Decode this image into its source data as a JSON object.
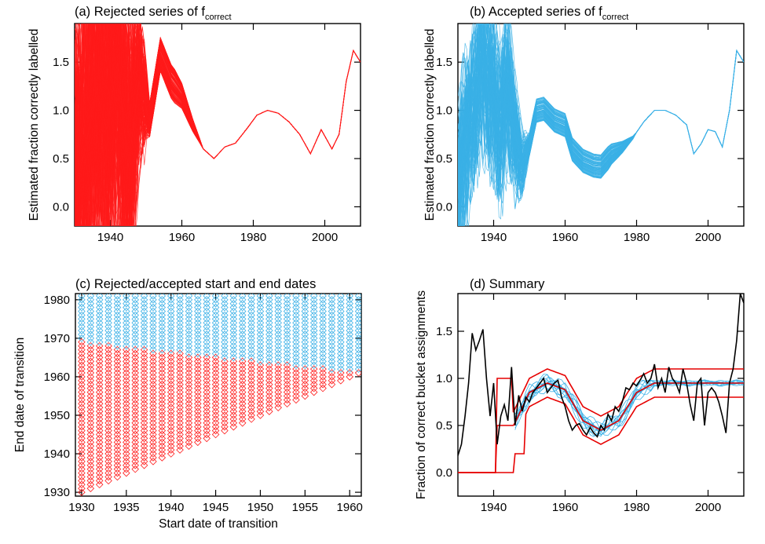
{
  "colors": {
    "rejected": "#ff1a1a",
    "accepted": "#3ab0e6",
    "summary": "#000000",
    "envelope": "#e60000"
  },
  "chart_data": [
    {
      "type": "line",
      "title": "(a) Rejected series of f",
      "title_subscript": "correct",
      "ylabel": "Estimated fraction correctly labelled",
      "xlabel": "",
      "xlim": [
        1930,
        2010
      ],
      "ylim": [
        -0.2,
        1.9
      ],
      "xticks": [
        1940,
        1960,
        1980,
        2000
      ],
      "yticks": [
        0.0,
        0.5,
        1.0,
        1.5
      ],
      "grid": false,
      "series_description": "ensemble of ~300 rejected f_correct curves, wildly unstable before 1950",
      "series": [
        {
          "x": [
            1930,
            1933,
            1936,
            1939,
            1942,
            1945,
            1948,
            1951,
            1954,
            1957,
            1960,
            1963,
            1966,
            1969,
            1972,
            1975,
            1978,
            1981,
            1984,
            1987,
            1990,
            1993,
            1996,
            1999,
            2002,
            2004,
            2006,
            2008,
            2010
          ],
          "values": [
            0.2,
            0.6,
            1.2,
            0.8,
            1.5,
            0.4,
            1.3,
            0.9,
            1.58,
            1.3,
            1.15,
            0.85,
            0.6,
            0.5,
            0.62,
            0.66,
            0.8,
            0.95,
            1.0,
            0.97,
            0.88,
            0.75,
            0.55,
            0.8,
            0.6,
            0.75,
            1.3,
            1.62,
            1.5
          ]
        }
      ]
    },
    {
      "type": "line",
      "title": "(b) Accepted series of f",
      "title_subscript": "correct",
      "ylabel": "Estimated fraction correctly labelled",
      "xlabel": "",
      "xlim": [
        1930,
        2010
      ],
      "ylim": [
        -0.2,
        1.9
      ],
      "xticks": [
        1940,
        1960,
        1980,
        2000
      ],
      "yticks": [
        0.0,
        0.5,
        1.0,
        1.5
      ],
      "grid": false,
      "series": [
        {
          "x": [
            1930,
            1933,
            1936,
            1938,
            1940,
            1942,
            1944,
            1946,
            1948,
            1950,
            1952,
            1954,
            1957,
            1960,
            1962,
            1965,
            1968,
            1970,
            1973,
            1976,
            1979,
            1982,
            1985,
            1988,
            1991,
            1994,
            1996,
            1998,
            2000,
            2002,
            2004,
            2006,
            2008,
            2010
          ],
          "values": [
            0.2,
            0.9,
            1.35,
            1.45,
            1.15,
            0.9,
            1.3,
            0.75,
            0.45,
            0.65,
            1.0,
            1.02,
            0.9,
            0.85,
            0.6,
            0.48,
            0.43,
            0.42,
            0.55,
            0.62,
            0.72,
            0.88,
            1.0,
            1.0,
            0.95,
            0.85,
            0.55,
            0.65,
            0.8,
            0.78,
            0.62,
            1.0,
            1.62,
            1.5
          ]
        }
      ]
    },
    {
      "type": "scatter",
      "title": "(c) Rejected/accepted start and end dates",
      "xlabel": "Start date of transition",
      "ylabel": "End date of transition",
      "xlim": [
        1929.3,
        1961.3
      ],
      "ylim": [
        1929,
        1981.6
      ],
      "xticks": [
        1930,
        1935,
        1940,
        1945,
        1950,
        1955,
        1960
      ],
      "yticks": [
        1930,
        1940,
        1950,
        1960,
        1970,
        1980
      ],
      "marker": "diamond",
      "grid_points": {
        "start_years": [
          1930,
          1961
        ],
        "end_years": [
          1930,
          1981
        ],
        "valid_if": "end >= start"
      },
      "acceptance_boundary": {
        "start": [
          1930,
          1961
        ],
        "end": [
          1969,
          1961
        ]
      },
      "series": [
        {
          "name": "",
          "color": "#3ab0e6",
          "rule": "end above boundary"
        },
        {
          "name": "",
          "color": "#ff1a1a",
          "rule": "end at or below boundary"
        }
      ]
    },
    {
      "type": "line",
      "title": "(d) Summary",
      "ylabel": "Fraction of correct bucket assignments",
      "xlabel": "",
      "xlim": [
        1930,
        2010
      ],
      "ylim": [
        -0.25,
        1.9
      ],
      "xticks": [
        1940,
        1960,
        1980,
        2000
      ],
      "yticks": [
        0.0,
        0.5,
        1.0,
        1.5
      ],
      "grid": false,
      "series": [
        {
          "x": [
            1930,
            1931,
            1932,
            1933,
            1934,
            1935,
            1936,
            1937,
            1938,
            1939,
            1940,
            1941,
            1942,
            1943,
            1944,
            1945,
            1946,
            1947,
            1948,
            1949,
            1950,
            1951,
            1952,
            1953,
            1954,
            1955,
            1956,
            1957,
            1958,
            1959,
            1960,
            1961,
            1962,
            1963,
            1964,
            1965,
            1966,
            1967,
            1968,
            1969,
            1970,
            1971,
            1972,
            1973,
            1974,
            1975,
            1976,
            1977,
            1978,
            1979,
            1980,
            1981,
            1982,
            1983,
            1984,
            1985,
            1986,
            1987,
            1988,
            1989,
            1990,
            1991,
            1992,
            1993,
            1994,
            1995,
            1996,
            1997,
            1998,
            1999,
            2000,
            2001,
            2002,
            2003,
            2004,
            2005,
            2006,
            2007,
            2008,
            2009,
            2010
          ],
          "values": [
            0.18,
            0.3,
            0.6,
            0.95,
            1.48,
            1.3,
            1.4,
            1.52,
            1.0,
            0.6,
            0.95,
            0.3,
            0.6,
            0.72,
            0.55,
            1.12,
            0.5,
            0.82,
            0.65,
            0.8,
            0.75,
            0.85,
            0.9,
            0.95,
            1.0,
            0.85,
            0.9,
            0.95,
            0.98,
            0.8,
            0.7,
            0.55,
            0.45,
            0.5,
            0.52,
            0.45,
            0.4,
            0.48,
            0.42,
            0.38,
            0.5,
            0.45,
            0.62,
            0.55,
            0.7,
            0.65,
            0.75,
            0.9,
            0.88,
            0.95,
            0.92,
            0.98,
            1.05,
            0.95,
            1.0,
            1.15,
            0.9,
            1.0,
            0.85,
            1.12,
            1.0,
            0.95,
            0.85,
            1.1,
            0.95,
            0.72,
            0.55,
            0.95,
            1.0,
            0.5,
            0.85,
            0.9,
            0.85,
            0.75,
            0.6,
            0.42,
            0.95,
            1.1,
            1.4,
            1.9,
            1.8
          ]
        }
      ]
    }
  ]
}
